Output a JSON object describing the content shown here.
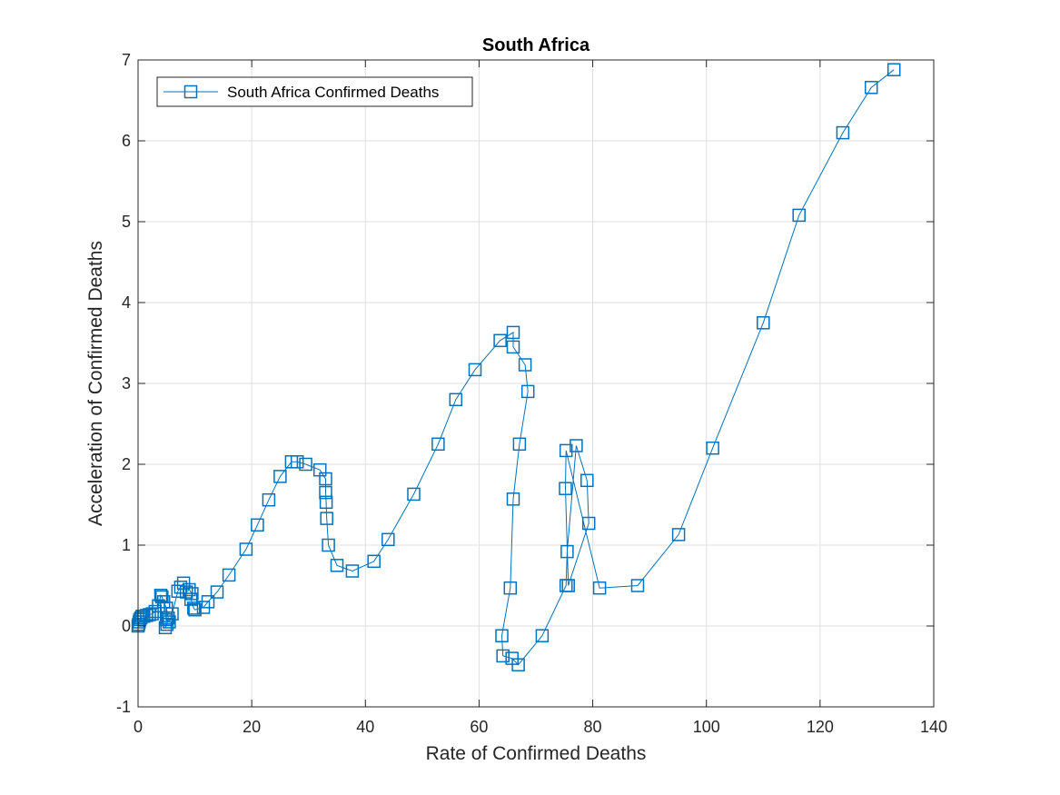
{
  "colors": {
    "series": "#0072BD",
    "grid": "#DFDFDF",
    "axis": "#262626"
  },
  "chart_data": {
    "type": "line",
    "marker": "square",
    "title": "South Africa",
    "xlabel": "Rate of Confirmed Deaths",
    "ylabel": "Acceleration of Confirmed Deaths",
    "xlim": [
      0,
      140
    ],
    "ylim": [
      -1,
      7
    ],
    "xticks": [
      "0",
      "20",
      "40",
      "60",
      "80",
      "100",
      "120",
      "140"
    ],
    "yticks": [
      "-1",
      "0",
      "1",
      "2",
      "3",
      "4",
      "5",
      "6",
      "7"
    ],
    "grid": true,
    "legend_position": "top-left",
    "series": [
      {
        "name": "South Africa Confirmed Deaths",
        "x": [
          0,
          0.1,
          0.2,
          0.3,
          0.5,
          0.7,
          1.0,
          1.5,
          2.0,
          2.5,
          3.0,
          3.6,
          4.0,
          4.2,
          4.5,
          5.0,
          5.3,
          5.1,
          4.8,
          5.0,
          5.5,
          6.0,
          7.0,
          7.5,
          8.0,
          8.5,
          9.0,
          9.5,
          9.3,
          9.8,
          10.0,
          11.5,
          12.3,
          13.9,
          16.0,
          19.0,
          21.0,
          23.0,
          25.0,
          27.0,
          28.0,
          29.5,
          32.0,
          33.0,
          33.0,
          33.1,
          33.2,
          33.5,
          35.0,
          37.7,
          41.5,
          44.0,
          48.5,
          52.8,
          55.9,
          59.3,
          63.7,
          66.0,
          66.0,
          68.1,
          68.6,
          67.1,
          66.0,
          65.5,
          64.0,
          64.2,
          65.8,
          66.9,
          71.1,
          75.3,
          75.5,
          77.1,
          79.0,
          79.3,
          75.7,
          75.2,
          75.3,
          81.2,
          87.9,
          95.1,
          101.1,
          110.0,
          116.3,
          124.0,
          129.0,
          133.0
        ],
        "y": [
          0,
          0.02,
          0.05,
          0.08,
          0.1,
          0.12,
          0.12,
          0.13,
          0.14,
          0.15,
          0.18,
          0.25,
          0.38,
          0.36,
          0.3,
          0.22,
          0.1,
          0.02,
          -0.02,
          0.08,
          0.05,
          0.15,
          0.43,
          0.48,
          0.53,
          0.42,
          0.45,
          0.4,
          0.33,
          0.22,
          0.2,
          0.23,
          0.3,
          0.42,
          0.63,
          0.95,
          1.25,
          1.56,
          1.85,
          2.03,
          2.03,
          2.0,
          1.93,
          1.82,
          1.65,
          1.53,
          1.33,
          1.0,
          0.75,
          0.68,
          0.8,
          1.07,
          1.63,
          2.25,
          2.8,
          3.17,
          3.53,
          3.63,
          3.45,
          3.23,
          2.9,
          2.25,
          1.57,
          0.47,
          -0.12,
          -0.37,
          -0.4,
          -0.48,
          -0.12,
          0.5,
          0.92,
          2.23,
          1.8,
          1.27,
          0.5,
          1.7,
          2.17,
          0.47,
          0.5,
          1.13,
          2.2,
          3.75,
          5.08,
          6.1,
          6.66,
          6.88
        ]
      }
    ]
  }
}
